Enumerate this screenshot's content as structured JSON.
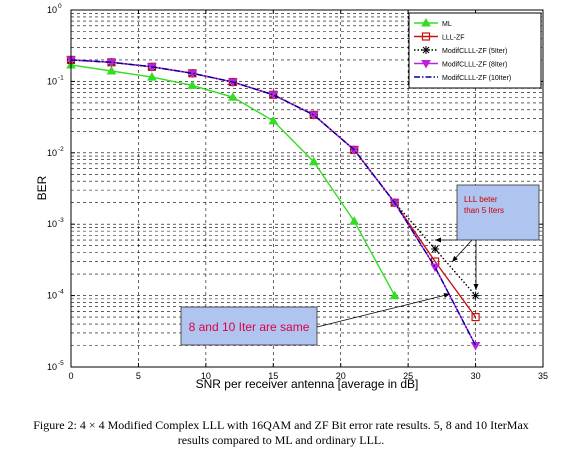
{
  "figure": {
    "caption_line1": "Figure 2: 4 × 4 Modified Complex LLL with 16QAM and ZF Bit error rate results. 5, 8 and 10 IterMax",
    "caption_line2": "results compared to ML and ordinary LLL."
  },
  "annotations": {
    "box1_line1": "LLL beter",
    "box1_line2": "than 5 Iters",
    "box2_text": "8 and 10 Iter are same"
  },
  "colors": {
    "ML": "#33dd22",
    "LLL-ZF": "#cc1111",
    "ModifCLLL-ZF (5Iter)": "#000000",
    "ModifCLLL-ZF (8Iter)": "#bb22dd",
    "ModifCLLL-ZF (10Iter)": "#000099",
    "annotation_box": "#b0c4f0",
    "annotation_box1_text": "#cc0000",
    "annotation_box2_text": "#dd0044"
  },
  "chart_data": {
    "type": "line",
    "xlabel": "SNR per receiver antenna [average in dB]",
    "ylabel": "BER",
    "xlim": [
      0,
      35
    ],
    "ylim": [
      1e-05,
      1
    ],
    "y_scale": "log",
    "x_ticks": [
      0,
      5,
      10,
      15,
      20,
      25,
      30,
      35
    ],
    "x_tick_labels": [
      "0",
      "5",
      "10",
      "15",
      "20",
      "25",
      "30",
      "35"
    ],
    "y_ticks": [
      1e-05,
      0.0001,
      0.001,
      0.01,
      0.1,
      1
    ],
    "y_tick_labels": [
      {
        "base": "10",
        "exp": "-5"
      },
      {
        "base": "10",
        "exp": "-4"
      },
      {
        "base": "10",
        "exp": "-3"
      },
      {
        "base": "10",
        "exp": "-2"
      },
      {
        "base": "10",
        "exp": "-1"
      },
      {
        "base": "10",
        "exp": "0"
      }
    ],
    "grid": true,
    "legend_position": "top-right",
    "series": [
      {
        "name": "ML",
        "marker": "triangle-up",
        "style": "solid",
        "x": [
          0,
          3,
          6,
          9,
          12,
          15,
          18,
          21,
          24
        ],
        "y": [
          0.17,
          0.14,
          0.115,
          0.088,
          0.06,
          0.028,
          0.0075,
          0.0011,
          0.0001
        ]
      },
      {
        "name": "LLL-ZF",
        "marker": "square",
        "style": "solid",
        "x": [
          0,
          3,
          6,
          9,
          12,
          15,
          18,
          21,
          24,
          27,
          30
        ],
        "y": [
          0.2,
          0.185,
          0.16,
          0.13,
          0.098,
          0.065,
          0.034,
          0.011,
          0.002,
          0.0003,
          5e-05
        ]
      },
      {
        "name": "ModifCLLL-ZF (5Iter)",
        "marker": "star",
        "style": "dotted",
        "x": [
          0,
          3,
          6,
          9,
          12,
          15,
          18,
          21,
          24,
          27,
          30
        ],
        "y": [
          0.2,
          0.185,
          0.16,
          0.13,
          0.098,
          0.065,
          0.034,
          0.011,
          0.002,
          0.00045,
          0.0001
        ]
      },
      {
        "name": "ModifCLLL-ZF (8Iter)",
        "marker": "triangle-down",
        "style": "solid",
        "x": [
          0,
          3,
          6,
          9,
          12,
          15,
          18,
          21,
          24,
          27,
          30
        ],
        "y": [
          0.2,
          0.185,
          0.16,
          0.13,
          0.098,
          0.065,
          0.034,
          0.011,
          0.002,
          0.00025,
          2e-05
        ]
      },
      {
        "name": "ModifCLLL-ZF (10Iter)",
        "marker": "none",
        "style": "dashdot",
        "x": [
          0,
          3,
          6,
          9,
          12,
          15,
          18,
          21,
          24,
          27,
          30
        ],
        "y": [
          0.2,
          0.185,
          0.16,
          0.13,
          0.098,
          0.065,
          0.034,
          0.011,
          0.002,
          0.00025,
          2e-05
        ]
      }
    ]
  }
}
